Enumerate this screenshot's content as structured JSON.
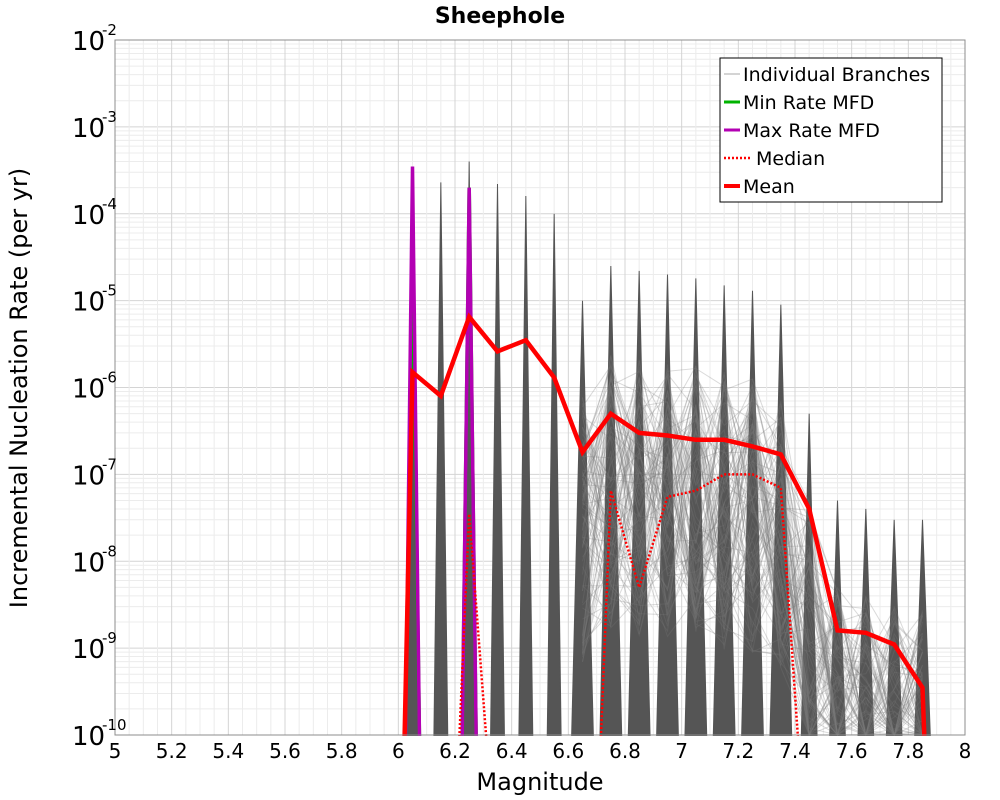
{
  "chart_data": {
    "type": "line",
    "title": "Sheephole",
    "xlabel": "Magnitude",
    "ylabel": "Incremental Nucleation Rate (per yr)",
    "xlim": [
      5,
      8
    ],
    "ylim": [
      1e-10,
      0.01
    ],
    "yscale": "log",
    "grid": true,
    "legend_position": "top-right",
    "x_ticks": [
      "5",
      "5.2",
      "5.4",
      "5.6",
      "5.8",
      "6",
      "6.2",
      "6.4",
      "6.6",
      "6.8",
      "7",
      "7.2",
      "7.4",
      "7.6",
      "7.8",
      "8"
    ],
    "y_ticks": [
      {
        "base": "10",
        "exp": "-10"
      },
      {
        "base": "10",
        "exp": "-9"
      },
      {
        "base": "10",
        "exp": "-8"
      },
      {
        "base": "10",
        "exp": "-7"
      },
      {
        "base": "10",
        "exp": "-6"
      },
      {
        "base": "10",
        "exp": "-5"
      },
      {
        "base": "10",
        "exp": "-4"
      },
      {
        "base": "10",
        "exp": "-3"
      },
      {
        "base": "10",
        "exp": "-2"
      }
    ],
    "x": [
      6.05,
      6.15,
      6.25,
      6.35,
      6.45,
      6.55,
      6.65,
      6.75,
      6.85,
      6.95,
      7.05,
      7.15,
      7.25,
      7.35,
      7.45,
      7.55,
      7.65,
      7.75,
      7.85
    ],
    "series": [
      {
        "name": "Individual Branches",
        "color": "#4d4d4d",
        "peak_values": [
          4.5e-05,
          0.00023,
          0.0004,
          0.00022,
          0.00016,
          0.0001,
          1e-05,
          2.5e-05,
          2.2e-05,
          2e-05,
          1.8e-05,
          1.5e-05,
          1.3e-05,
          9e-06,
          5e-07,
          5e-08,
          4e-08,
          3e-08,
          3e-08
        ]
      },
      {
        "name": "Min Rate MFD",
        "color": "#00b300",
        "values": [
          4.5e-05,
          null,
          0.0002,
          null,
          null,
          null,
          null,
          null,
          null,
          null,
          null,
          null,
          null,
          null,
          null,
          null,
          null,
          null,
          null
        ]
      },
      {
        "name": "Max Rate MFD",
        "color": "#b300b3",
        "values": [
          0.00035,
          null,
          0.0002,
          null,
          null,
          null,
          null,
          null,
          null,
          null,
          null,
          null,
          null,
          null,
          null,
          null,
          null,
          null,
          null
        ]
      },
      {
        "name": "Median",
        "color": "#ff0000",
        "values": [
          null,
          null,
          3.5e-08,
          null,
          null,
          null,
          null,
          6.5e-08,
          5e-09,
          5.5e-08,
          6.5e-08,
          1e-07,
          1e-07,
          7e-08,
          null,
          null,
          null,
          null,
          null
        ]
      },
      {
        "name": "Mean",
        "color": "#ff0000",
        "values": [
          1.5e-06,
          8e-07,
          6.5e-06,
          2.6e-06,
          3.5e-06,
          1.3e-06,
          1.8e-07,
          5e-07,
          3e-07,
          2.8e-07,
          2.5e-07,
          2.5e-07,
          2.1e-07,
          1.7e-07,
          4e-08,
          1.6e-09,
          1.5e-09,
          1.1e-09,
          3.5e-10
        ]
      }
    ]
  }
}
